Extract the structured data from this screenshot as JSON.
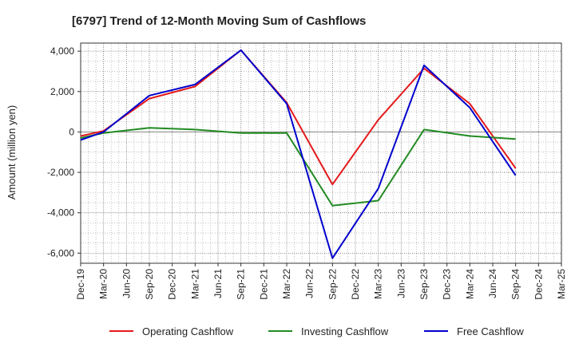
{
  "chart_data": {
    "type": "line",
    "title": "[6797]  Trend of 12-Month Moving Sum of Cashflows",
    "xlabel": "",
    "ylabel": "Amount (million yen)",
    "categories": [
      "Dec-19",
      "Mar-20",
      "Jun-20",
      "Sep-20",
      "Dec-20",
      "Mar-21",
      "Jun-21",
      "Sep-21",
      "Dec-21",
      "Mar-22",
      "Jun-22",
      "Sep-22",
      "Dec-22",
      "Mar-23",
      "Jun-23",
      "Sep-23",
      "Dec-23",
      "Mar-24",
      "Jun-24",
      "Sep-24",
      "Dec-24",
      "Mar-25"
    ],
    "ylim": [
      -6500,
      4400
    ],
    "yticks": [
      4000,
      2000,
      0,
      -2000,
      -4000,
      -6000
    ],
    "ytick_labels": [
      "4,000",
      "2,000",
      "0",
      "-2,000",
      "-4,000",
      "-6,000"
    ],
    "grid": true,
    "legend_position": "bottom",
    "series": [
      {
        "name": "Operating Cashflow",
        "color": "#e41a1c",
        "points": [
          [
            "Dec-19",
            -200
          ],
          [
            "Mar-20",
            50
          ],
          [
            "Sep-20",
            1650
          ],
          [
            "Mar-21",
            2250
          ],
          [
            "Sep-21",
            4050
          ],
          [
            "Mar-22",
            1450
          ],
          [
            "Sep-22",
            -2600
          ],
          [
            "Mar-23",
            600
          ],
          [
            "Sep-23",
            3150
          ],
          [
            "Mar-24",
            1400
          ],
          [
            "Sep-24",
            -1800
          ]
        ]
      },
      {
        "name": "Investing Cashflow",
        "color": "#228b22",
        "points": [
          [
            "Dec-19",
            -300
          ],
          [
            "Mar-20",
            -50
          ],
          [
            "Sep-20",
            200
          ],
          [
            "Mar-21",
            120
          ],
          [
            "Sep-21",
            -50
          ],
          [
            "Mar-22",
            -50
          ],
          [
            "Sep-22",
            -3650
          ],
          [
            "Mar-23",
            -3400
          ],
          [
            "Sep-23",
            120
          ],
          [
            "Mar-24",
            -200
          ],
          [
            "Sep-24",
            -350
          ]
        ]
      },
      {
        "name": "Free Cashflow",
        "color": "#0000cd",
        "points": [
          [
            "Dec-19",
            -400
          ],
          [
            "Mar-20",
            0
          ],
          [
            "Sep-20",
            1800
          ],
          [
            "Mar-21",
            2350
          ],
          [
            "Sep-21",
            4050
          ],
          [
            "Mar-22",
            1400
          ],
          [
            "Sep-22",
            -6250
          ],
          [
            "Mar-23",
            -2800
          ],
          [
            "Sep-23",
            3300
          ],
          [
            "Mar-24",
            1200
          ],
          [
            "Sep-24",
            -2150
          ]
        ]
      }
    ]
  }
}
